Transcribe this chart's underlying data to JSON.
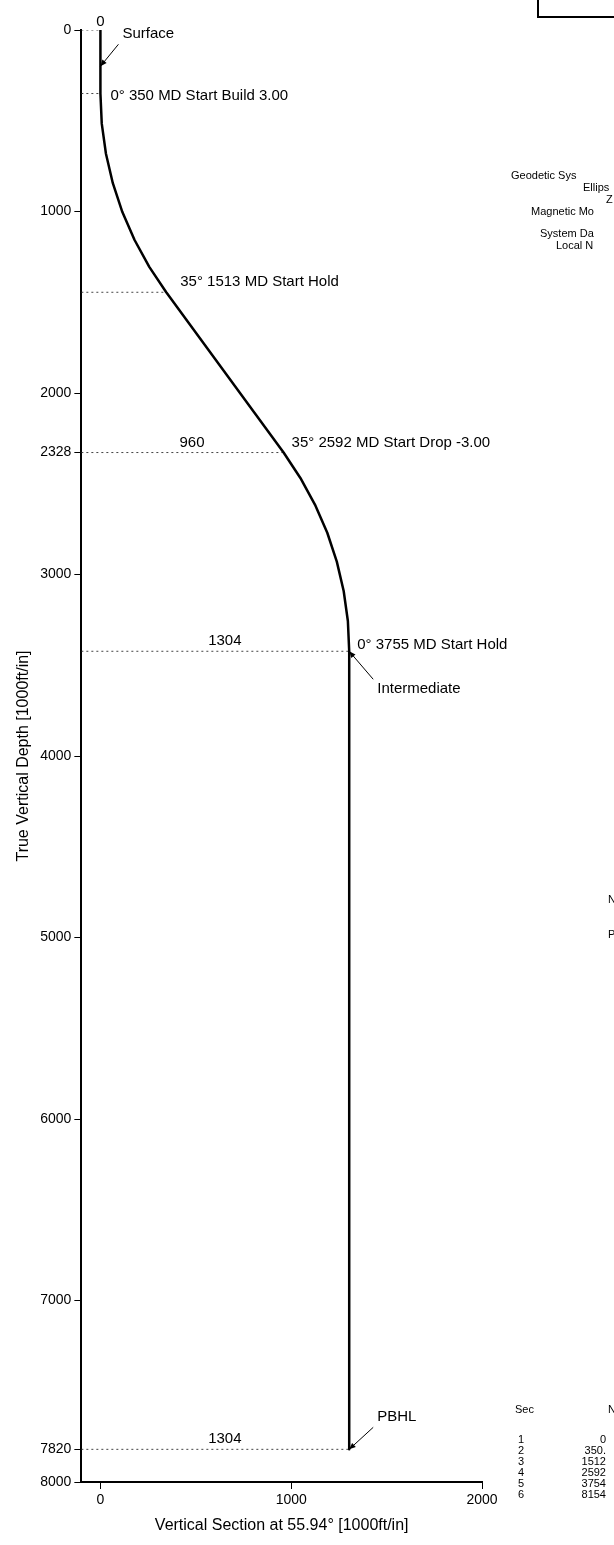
{
  "chart_data": {
    "type": "line",
    "xlabel": "Vertical Section at 55.94° [1000ft/in]",
    "ylabel": "True Vertical Depth [1000ft/in]",
    "series": [
      {
        "color": "#000000",
        "line_style": "solid",
        "x": [
          0,
          0,
          7,
          29,
          65,
          115,
          179,
          256,
          345,
          960,
          1048,
          1125,
          1189,
          1239,
          1275,
          1297,
          1304,
          1304
        ],
        "values": [
          0,
          350,
          516,
          682,
          844,
          1003,
          1157,
          1305,
          1445,
          2328,
          2468,
          2616,
          2770,
          2929,
          3091,
          3256,
          3423,
          7820
        ]
      },
      {
        "color": "#444444",
        "line_style": "dotted",
        "x": [
          -100,
          0
        ],
        "values": [
          0,
          0
        ]
      },
      {
        "color": "#444444",
        "line_style": "dotted",
        "x": [
          -100,
          0
        ],
        "values": [
          350,
          350
        ]
      },
      {
        "color": "#444444",
        "line_style": "dotted",
        "x": [
          -100,
          345
        ],
        "values": [
          1445,
          1445
        ]
      },
      {
        "color": "#444444",
        "line_style": "dotted",
        "x": [
          -100,
          960
        ],
        "values": [
          2328,
          2328
        ]
      },
      {
        "color": "#444444",
        "line_style": "dotted",
        "x": [
          -100,
          1304
        ],
        "values": [
          3423,
          3423
        ]
      },
      {
        "color": "#444444",
        "line_style": "dotted",
        "x": [
          -100,
          1304
        ],
        "values": [
          7820,
          7820
        ]
      }
    ],
    "xlim": [
      -100,
      2000
    ],
    "xticks": [
      0,
      1000,
      2000
    ],
    "ylim": [
      8000,
      0
    ],
    "yticks": [
      0,
      1000,
      2000,
      2328,
      3000,
      4000,
      5000,
      6000,
      7000,
      7820,
      8000
    ],
    "grid": false,
    "legend": false,
    "marker": "none",
    "annotations": [
      {
        "text": "0",
        "x": 0,
        "y": 0
      },
      {
        "text": "Surface",
        "x": 0,
        "y": 200
      },
      {
        "text": "0° 350 MD Start Build 3.00",
        "x": 0,
        "y": 350
      },
      {
        "text": "35° 1513 MD Start Hold",
        "x": 345,
        "y": 1445
      },
      {
        "text": "960",
        "x": 480,
        "y": 2328
      },
      {
        "text": "35° 2592 MD Start Drop -3.00",
        "x": 960,
        "y": 2328
      },
      {
        "text": "1304",
        "x": 652,
        "y": 3423
      },
      {
        "text": "0° 3755 MD Start Hold",
        "x": 1304,
        "y": 3423
      },
      {
        "text": "Intermediate",
        "x": 1304,
        "y": 3423
      },
      {
        "text": "1304",
        "x": 652,
        "y": 7820
      },
      {
        "text": "PBHL",
        "x": 1304,
        "y": 7820
      },
      "Geodetic Sys",
      "Ellips",
      "Z",
      "Magnetic Mo",
      "System Da",
      "Local N",
      "N",
      "P",
      "Sec",
      "N",
      "1",
      "0",
      "2",
      "350.",
      "3",
      "1512",
      "4",
      "2592",
      "5",
      "3754",
      "6",
      "8154"
    ]
  }
}
